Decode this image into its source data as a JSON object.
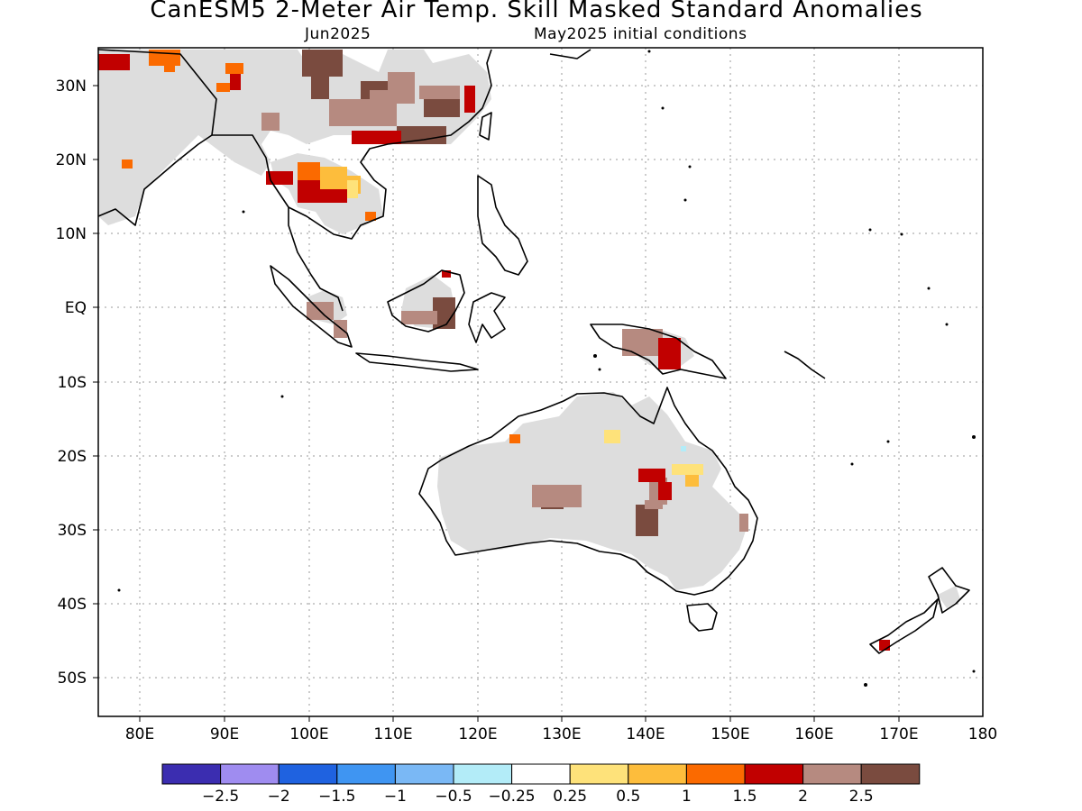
{
  "title": "CanESM5 2-Meter Air Temp. Skill Masked Standard Anomalies",
  "subtitle_left": "Jun2025",
  "subtitle_right": "May2025 initial conditions",
  "map": {
    "lon_range": [
      75,
      180
    ],
    "lat_range": [
      -55,
      35
    ],
    "lon_ticks": [
      "80E",
      "90E",
      "100E",
      "110E",
      "120E",
      "130E",
      "140E",
      "150E",
      "160E",
      "170E",
      "180"
    ],
    "lat_ticks": [
      "30N",
      "20N",
      "10N",
      "EQ",
      "10S",
      "20S",
      "30S",
      "40S",
      "50S"
    ],
    "colors": {
      "mask": "#dddddd",
      "land_outline": "#000000"
    }
  },
  "colorbar": {
    "labels": [
      "-2.5",
      "-2",
      "-1.5",
      "-1",
      "-0.5",
      "-0.25",
      "0.25",
      "0.5",
      "1",
      "1.5",
      "2",
      "2.5"
    ],
    "colors": [
      "#3b2db0",
      "#9f8cf0",
      "#1f62e0",
      "#3f95f2",
      "#7ab8f5",
      "#b3ecf8",
      "#ffffff",
      "#fee27a",
      "#fdbd3c",
      "#fb6a00",
      "#c10000",
      "#b68a80",
      "#7a4b3f"
    ]
  }
}
